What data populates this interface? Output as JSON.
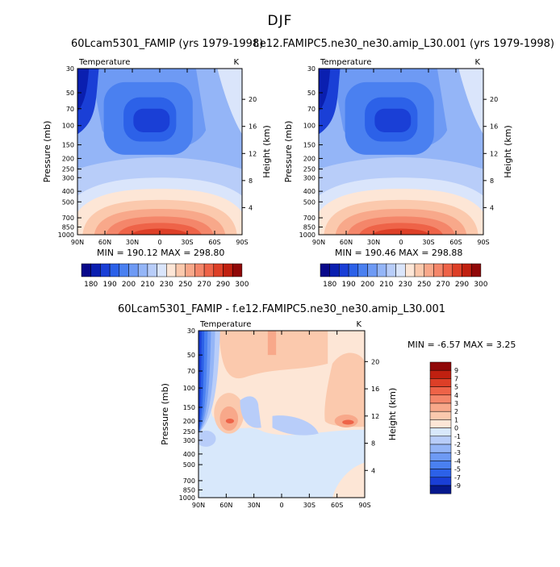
{
  "page_title": "DJF",
  "colors": {
    "abs_palette": [
      "#08088a",
      "#0a1fb0",
      "#1a3fd6",
      "#2c61e8",
      "#4a80f0",
      "#6e9af4",
      "#94b5f7",
      "#b8cdf9",
      "#dae5fb",
      "#fde6d6",
      "#fbc9ad",
      "#f8a88a",
      "#f4866a",
      "#ee6348",
      "#dd3f27",
      "#c02010",
      "#900808"
    ],
    "diff_palette": [
      "#06188c",
      "#1a3fd6",
      "#2c61e8",
      "#4a80f0",
      "#6e9af4",
      "#94b5f7",
      "#b8cdf9",
      "#d8e8fb",
      "#fde6d6",
      "#fbc9ad",
      "#f8a88a",
      "#f4866a",
      "#ee6348",
      "#dd3f27",
      "#c02010",
      "#900808"
    ]
  },
  "chart_data": [
    {
      "type": "heatmap",
      "title": "60Lcam5301_FAMIP (yrs 1979-1998)",
      "subtitle": "Temperature",
      "units": "K",
      "ylabel": "Pressure (mb)",
      "ylabel_right": "Height (km)",
      "x_ticks": [
        "90N",
        "60N",
        "30N",
        "0",
        "30S",
        "60S",
        "90S"
      ],
      "y_ticks": [
        "30",
        "50",
        "70",
        "100",
        "150",
        "200",
        "250",
        "300",
        "400",
        "500",
        "700",
        "850",
        "1000"
      ],
      "y_ticks_right": [
        "20",
        "16",
        "12",
        "8",
        "4"
      ],
      "min_max_text": "MIN = 190.12   MAX = 298.80",
      "min": 190.12,
      "max": 298.8,
      "colorbar_labels": [
        "180",
        "190",
        "200",
        "210",
        "230",
        "250",
        "270",
        "290",
        "300"
      ]
    },
    {
      "type": "heatmap",
      "title": "f.e12.FAMIPC5.ne30_ne30.amip_L30.001 (yrs 1979-1998)",
      "subtitle": "Temperature",
      "units": "K",
      "ylabel": "Pressure (mb)",
      "ylabel_right": "Height (km)",
      "x_ticks": [
        "90N",
        "60N",
        "30N",
        "0",
        "30S",
        "60S",
        "90S"
      ],
      "y_ticks": [
        "30",
        "50",
        "70",
        "100",
        "150",
        "200",
        "250",
        "300",
        "400",
        "500",
        "700",
        "850",
        "1000"
      ],
      "y_ticks_right": [
        "20",
        "16",
        "12",
        "8",
        "4"
      ],
      "min_max_text": "MIN = 190.46   MAX = 298.88",
      "min": 190.46,
      "max": 298.88,
      "colorbar_labels": [
        "180",
        "190",
        "200",
        "210",
        "230",
        "250",
        "270",
        "290",
        "300"
      ]
    },
    {
      "type": "heatmap",
      "title": "60Lcam5301_FAMIP - f.e12.FAMIPC5.ne30_ne30.amip_L30.001",
      "subtitle": "Temperature",
      "units": "K",
      "ylabel": "Pressure (mb)",
      "ylabel_right": "Height (km)",
      "x_ticks": [
        "90N",
        "60N",
        "30N",
        "0",
        "30S",
        "60S",
        "90S"
      ],
      "y_ticks": [
        "30",
        "50",
        "70",
        "100",
        "150",
        "200",
        "250",
        "300",
        "400",
        "500",
        "700",
        "850",
        "1000"
      ],
      "y_ticks_right": [
        "20",
        "16",
        "12",
        "8",
        "4"
      ],
      "min_max_text": "MIN =   -6.57   MAX =    3.25",
      "min": -6.57,
      "max": 3.25,
      "colorbar_labels": [
        "9",
        "7",
        "5",
        "4",
        "3",
        "2",
        "1",
        "0",
        "-1",
        "-2",
        "-3",
        "-4",
        "-5",
        "-7",
        "-9"
      ]
    }
  ]
}
